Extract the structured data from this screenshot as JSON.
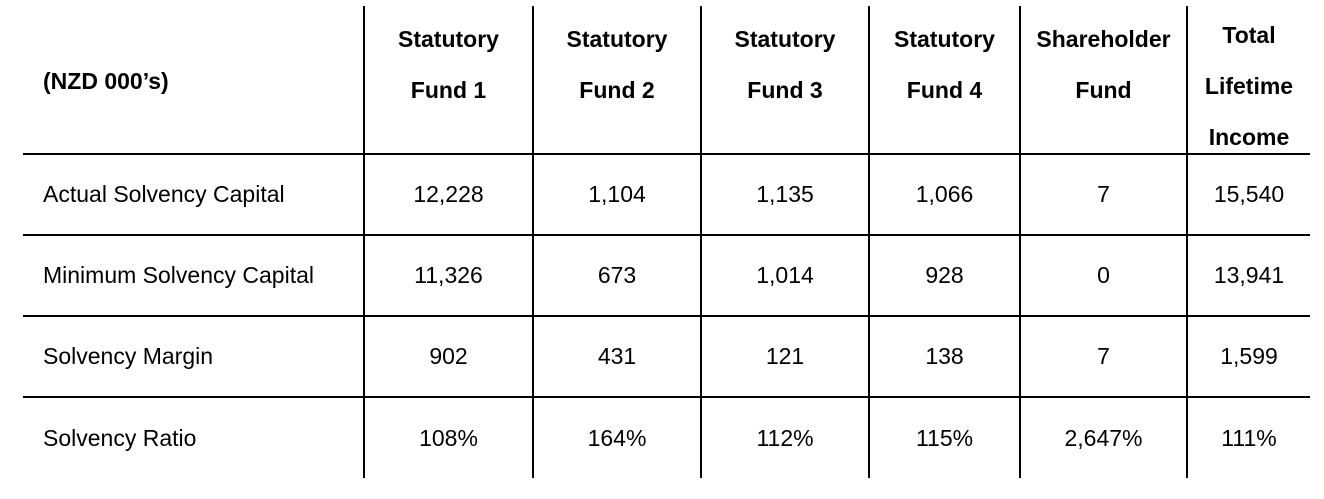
{
  "table": {
    "unit_label": "(NZD 000’s)",
    "columns": [
      {
        "line1": "Statutory",
        "line2": "Fund 1",
        "line3": ""
      },
      {
        "line1": "Statutory",
        "line2": "Fund 2",
        "line3": ""
      },
      {
        "line1": "Statutory",
        "line2": "Fund 3",
        "line3": ""
      },
      {
        "line1": "Statutory",
        "line2": "Fund 4",
        "line3": ""
      },
      {
        "line1": "Shareholder",
        "line2": "Fund",
        "line3": ""
      },
      {
        "line1": "Total",
        "line2": "Lifetime",
        "line3": "Income"
      }
    ],
    "rows": [
      {
        "label": "Actual Solvency Capital",
        "values": [
          "12,228",
          "1,104",
          "1,135",
          "1,066",
          "7",
          "15,540"
        ]
      },
      {
        "label": "Minimum Solvency Capital",
        "values": [
          "11,326",
          "673",
          "1,014",
          "928",
          "0",
          "13,941"
        ]
      },
      {
        "label": "Solvency Margin",
        "values": [
          "902",
          "431",
          "121",
          "138",
          "7",
          "1,599"
        ]
      },
      {
        "label": "Solvency Ratio",
        "values": [
          "108%",
          "164%",
          "112%",
          "115%",
          "2,647%",
          "111%"
        ]
      }
    ]
  }
}
